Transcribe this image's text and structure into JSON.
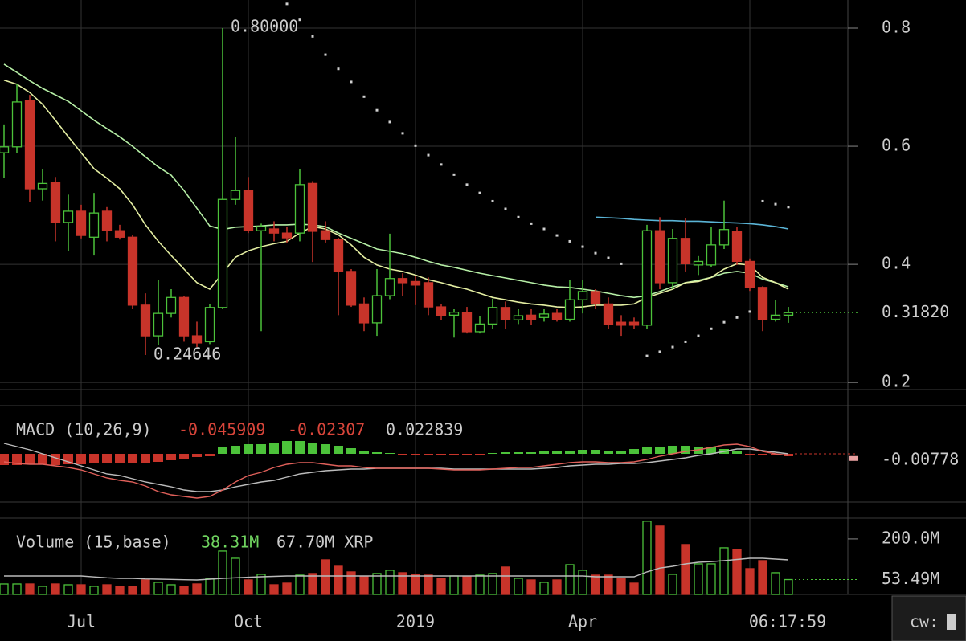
{
  "chart_data": [
    {
      "type": "candlestick",
      "xlim": [
        -0.3125,
        65.625
      ],
      "xticks": [
        {
          "value": 6,
          "label": "Jul"
        },
        {
          "value": 19,
          "label": "Oct"
        },
        {
          "value": 32,
          "label": "2019"
        },
        {
          "value": 45,
          "label": "Apr"
        },
        {
          "value": 58,
          "label": null
        }
      ],
      "ylim": [
        0.188,
        0.8476
      ],
      "yticks": [
        0.2,
        0.4,
        0.6,
        0.8
      ],
      "grid": true,
      "up_color": "#4cc23a",
      "down_color": "#c8342a",
      "open": [
        0.589,
        0.599,
        0.678,
        0.528,
        0.539,
        0.471,
        0.49,
        0.446,
        0.49,
        0.457,
        0.446,
        0.331,
        0.279,
        0.317,
        0.344,
        0.279,
        0.269,
        0.327,
        0.51,
        0.525,
        0.457,
        0.46,
        0.453,
        0.453,
        0.537,
        0.457,
        0.442,
        0.388,
        0.333,
        0.301,
        0.347,
        0.376,
        0.371,
        0.369,
        0.328,
        0.314,
        0.319,
        0.286,
        0.299,
        0.327,
        0.306,
        0.314,
        0.31,
        0.317,
        0.307,
        0.34,
        0.354,
        0.333,
        0.302,
        0.302,
        0.297,
        0.457,
        0.369,
        0.444,
        0.399,
        0.399,
        0.433,
        0.456,
        0.405,
        0.361,
        0.307,
        0.314
      ],
      "high": [
        0.637,
        0.705,
        0.687,
        0.562,
        0.548,
        0.518,
        0.501,
        0.521,
        0.497,
        0.467,
        0.45,
        0.351,
        0.374,
        0.358,
        0.347,
        0.303,
        0.333,
        0.8,
        0.616,
        0.548,
        0.469,
        0.473,
        0.464,
        0.562,
        0.541,
        0.473,
        0.445,
        0.392,
        0.344,
        0.392,
        0.452,
        0.385,
        0.38,
        0.378,
        0.333,
        0.324,
        0.328,
        0.313,
        0.342,
        0.337,
        0.324,
        0.324,
        0.324,
        0.324,
        0.374,
        0.374,
        0.358,
        0.344,
        0.314,
        0.31,
        0.467,
        0.48,
        0.46,
        0.478,
        0.414,
        0.463,
        0.508,
        0.463,
        0.41,
        0.363,
        0.34,
        0.328
      ],
      "low": [
        0.546,
        0.589,
        0.505,
        0.508,
        0.439,
        0.423,
        0.444,
        0.415,
        0.439,
        0.442,
        0.324,
        0.24646,
        0.263,
        0.31,
        0.269,
        0.26,
        0.265,
        0.324,
        0.501,
        0.453,
        0.287,
        0.439,
        0.437,
        0.439,
        0.404,
        0.437,
        0.314,
        0.328,
        0.287,
        0.279,
        0.341,
        0.347,
        0.331,
        0.314,
        0.306,
        0.276,
        0.283,
        0.283,
        0.29,
        0.29,
        0.299,
        0.297,
        0.303,
        0.303,
        0.303,
        0.317,
        0.324,
        0.29,
        0.279,
        0.29,
        0.29,
        0.358,
        0.358,
        0.388,
        0.382,
        0.396,
        0.426,
        0.399,
        0.355,
        0.287,
        0.303,
        0.301
      ],
      "close": [
        0.599,
        0.675,
        0.528,
        0.537,
        0.471,
        0.49,
        0.449,
        0.487,
        0.457,
        0.446,
        0.331,
        0.279,
        0.317,
        0.344,
        0.279,
        0.267,
        0.327,
        0.51,
        0.525,
        0.457,
        0.464,
        0.453,
        0.445,
        0.535,
        0.456,
        0.442,
        0.388,
        0.331,
        0.301,
        0.347,
        0.376,
        0.369,
        0.365,
        0.328,
        0.313,
        0.319,
        0.286,
        0.299,
        0.327,
        0.306,
        0.313,
        0.307,
        0.316,
        0.307,
        0.34,
        0.354,
        0.333,
        0.299,
        0.297,
        0.297,
        0.457,
        0.369,
        0.444,
        0.401,
        0.405,
        0.433,
        0.459,
        0.405,
        0.361,
        0.307,
        0.314,
        0.3182
      ],
      "series": [
        {
          "color": "#b6efa6",
          "values": [
            0.739,
            0.725,
            0.711,
            0.698,
            0.687,
            0.676,
            0.66,
            0.644,
            0.63,
            0.616,
            0.6,
            0.582,
            0.565,
            0.551,
            0.525,
            0.495,
            0.465,
            0.459,
            0.463,
            0.464,
            0.465,
            0.467,
            0.467,
            0.468,
            0.467,
            0.464,
            0.453,
            0.444,
            0.435,
            0.426,
            0.422,
            0.418,
            0.412,
            0.405,
            0.399,
            0.395,
            0.39,
            0.385,
            0.381,
            0.377,
            0.373,
            0.369,
            0.365,
            0.362,
            0.361,
            0.358,
            0.355,
            0.351,
            0.347,
            0.344,
            0.347,
            0.354,
            0.362,
            0.369,
            0.373,
            0.378,
            0.385,
            0.388,
            0.385,
            0.375,
            0.369,
            0.362
          ]
        },
        {
          "color": "#e4eea2",
          "values": [
            0.712,
            0.705,
            0.691,
            0.671,
            0.644,
            0.616,
            0.589,
            0.562,
            0.546,
            0.528,
            0.501,
            0.467,
            0.439,
            0.415,
            0.392,
            0.369,
            0.358,
            0.385,
            0.412,
            0.423,
            0.43,
            0.435,
            0.439,
            0.453,
            0.464,
            0.46,
            0.45,
            0.433,
            0.412,
            0.399,
            0.392,
            0.388,
            0.382,
            0.374,
            0.369,
            0.363,
            0.358,
            0.351,
            0.344,
            0.34,
            0.336,
            0.333,
            0.331,
            0.328,
            0.327,
            0.328,
            0.331,
            0.331,
            0.331,
            0.333,
            0.344,
            0.351,
            0.358,
            0.369,
            0.371,
            0.378,
            0.392,
            0.401,
            0.399,
            0.378,
            0.369,
            0.358
          ]
        },
        {
          "color": "#5ab4d6",
          "values": [
            null,
            null,
            null,
            null,
            null,
            null,
            null,
            null,
            null,
            null,
            null,
            null,
            null,
            null,
            null,
            null,
            null,
            null,
            null,
            null,
            null,
            null,
            null,
            null,
            null,
            null,
            null,
            null,
            null,
            null,
            null,
            null,
            null,
            null,
            null,
            null,
            null,
            null,
            null,
            null,
            null,
            null,
            null,
            null,
            null,
            null,
            0.48,
            0.479,
            0.478,
            0.476,
            0.475,
            0.474,
            0.474,
            0.473,
            0.473,
            0.472,
            0.471,
            0.47,
            0.469,
            0.467,
            0.464,
            0.46
          ]
        }
      ],
      "sar": {
        "color": "#d0d0d0",
        "values": [
          null,
          null,
          null,
          null,
          null,
          null,
          null,
          null,
          null,
          null,
          null,
          null,
          null,
          null,
          null,
          null,
          null,
          null,
          null,
          null,
          null,
          null,
          0.841,
          0.814,
          0.786,
          0.755,
          0.731,
          0.709,
          0.684,
          0.661,
          0.641,
          0.622,
          0.601,
          0.585,
          0.569,
          0.552,
          0.535,
          0.521,
          0.507,
          0.494,
          0.48,
          0.469,
          0.46,
          0.449,
          0.439,
          0.43,
          0.419,
          0.411,
          0.401,
          null,
          0.245,
          0.252,
          0.26,
          0.269,
          0.279,
          0.291,
          0.302,
          0.31,
          0.32,
          0.507,
          0.502,
          0.497
        ]
      },
      "annotations": [
        {
          "value": 0.8,
          "label": "0.80000"
        },
        {
          "value": 0.24646,
          "label": "0.24646"
        }
      ],
      "last_price": {
        "value": 0.3182,
        "label": "0.31820"
      }
    },
    {
      "type": "macd",
      "title": "MACD (10,26,9)",
      "readout": [
        {
          "value": -0.045909,
          "color": "#d8453a"
        },
        {
          "value": -0.02307,
          "color": "#d8453a"
        },
        {
          "value": 0.022839,
          "color": "#cccccc"
        }
      ],
      "ylim": [
        -0.06,
        0.06
      ],
      "macd": {
        "color": "#e0605a",
        "values": [
          -0.01,
          -0.012,
          -0.013,
          -0.013,
          -0.015,
          -0.017,
          -0.02,
          -0.025,
          -0.03,
          -0.033,
          -0.035,
          -0.04,
          -0.047,
          -0.051,
          -0.053,
          -0.055,
          -0.053,
          -0.045,
          -0.035,
          -0.027,
          -0.023,
          -0.017,
          -0.013,
          -0.011,
          -0.011,
          -0.013,
          -0.015,
          -0.015,
          -0.017,
          -0.018,
          -0.018,
          -0.018,
          -0.018,
          -0.018,
          -0.019,
          -0.02,
          -0.02,
          -0.02,
          -0.019,
          -0.018,
          -0.017,
          -0.017,
          -0.015,
          -0.013,
          -0.011,
          -0.01,
          -0.01,
          -0.011,
          -0.011,
          -0.01,
          -0.007,
          -0.003,
          0,
          0.003,
          0.005,
          0.008,
          0.011,
          0.012,
          0.009,
          0.003,
          0,
          -0.002
        ]
      },
      "signal": {
        "color": "#bbbbbb",
        "values": [
          0.013,
          0.009,
          0.005,
          0,
          -0.005,
          -0.01,
          -0.015,
          -0.02,
          -0.025,
          -0.027,
          -0.031,
          -0.035,
          -0.038,
          -0.041,
          -0.045,
          -0.047,
          -0.047,
          -0.045,
          -0.041,
          -0.038,
          -0.035,
          -0.033,
          -0.029,
          -0.025,
          -0.023,
          -0.021,
          -0.02,
          -0.019,
          -0.019,
          -0.018,
          -0.018,
          -0.018,
          -0.018,
          -0.018,
          -0.018,
          -0.019,
          -0.019,
          -0.019,
          -0.019,
          -0.019,
          -0.019,
          -0.019,
          -0.018,
          -0.017,
          -0.015,
          -0.014,
          -0.013,
          -0.013,
          -0.012,
          -0.012,
          -0.011,
          -0.009,
          -0.007,
          -0.005,
          -0.002,
          0,
          0.003,
          0.006,
          0.006,
          0.004,
          0.002,
          0
        ]
      },
      "histogram": {
        "values": [
          -0.014,
          -0.014,
          -0.013,
          -0.013,
          -0.014,
          -0.013,
          -0.013,
          -0.012,
          -0.012,
          -0.011,
          -0.011,
          -0.012,
          -0.01,
          -0.008,
          -0.006,
          -0.004,
          -0.003,
          0.008,
          0.01,
          0.012,
          0.012,
          0.014,
          0.016,
          0.016,
          0.014,
          0.012,
          0.01,
          0.007,
          0.004,
          0.002,
          0.001,
          -0.001,
          -0.001,
          -0.001,
          -0.001,
          -0.001,
          -0.001,
          -0.001,
          0.001,
          0.002,
          0.002,
          0.002,
          0.003,
          0.003,
          0.004,
          0.005,
          0.005,
          0.004,
          0.004,
          0.006,
          0.008,
          0.009,
          0.01,
          0.01,
          0.009,
          0.008,
          0.006,
          0.003,
          -0.001,
          -0.002,
          -0.002,
          -0.003
        ]
      },
      "last_value": -0.00778
    },
    {
      "type": "volume-bar",
      "title": "Volume (15,base)",
      "readout": [
        {
          "value": 38310000,
          "label": "38.31M",
          "color": "#6fd35f"
        },
        {
          "value": 67700000,
          "label": "67.70M XRP",
          "color": "#cccccc"
        }
      ],
      "ylim": [
        0,
        275000000
      ],
      "yticks": [
        {
          "value": 200000000,
          "label": "200.0M"
        }
      ],
      "values": [
        37700000,
        37700000,
        37700000,
        29000000,
        37700000,
        34800000,
        34800000,
        29000000,
        34800000,
        29000000,
        29000000,
        52200000,
        43500000,
        34800000,
        29000000,
        37700000,
        58000000,
        156500000,
        130400000,
        52200000,
        72500000,
        34800000,
        40600000,
        69600000,
        75400000,
        124600000,
        101400000,
        81200000,
        63800000,
        75400000,
        87000000,
        78300000,
        72500000,
        69600000,
        58000000,
        66700000,
        63800000,
        69600000,
        75400000,
        98600000,
        58000000,
        52200000,
        43500000,
        52200000,
        107200000,
        87000000,
        69600000,
        69600000,
        58000000,
        40600000,
        263800000,
        246400000,
        72500000,
        179700000,
        110100000,
        110100000,
        168100000,
        162300000,
        92800000,
        121700000,
        78300000,
        53490000
      ],
      "ma": {
        "color": "#bbbbbb",
        "values": [
          66700000,
          66700000,
          66700000,
          66700000,
          66700000,
          66700000,
          66700000,
          63000000,
          60000000,
          58000000,
          58000000,
          56000000,
          55000000,
          54000000,
          53000000,
          52200000,
          55000000,
          58000000,
          60000000,
          62000000,
          63800000,
          65000000,
          66700000,
          66700000,
          66700000,
          66700000,
          66700000,
          66700000,
          66700000,
          66700000,
          66700000,
          66700000,
          66700000,
          66700000,
          66700000,
          66700000,
          66700000,
          66700000,
          66700000,
          66700000,
          66700000,
          66700000,
          66700000,
          66700000,
          66700000,
          66700000,
          63800000,
          63800000,
          63800000,
          63800000,
          81200000,
          95000000,
          101400000,
          110000000,
          115900000,
          118000000,
          122000000,
          126000000,
          130400000,
          130400000,
          127500000,
          124600000
        ]
      },
      "last_value": {
        "value": 53490000,
        "label": "53.49M"
      }
    }
  ],
  "countdown": "06:17:59",
  "console": {
    "prompt": "cw:"
  }
}
